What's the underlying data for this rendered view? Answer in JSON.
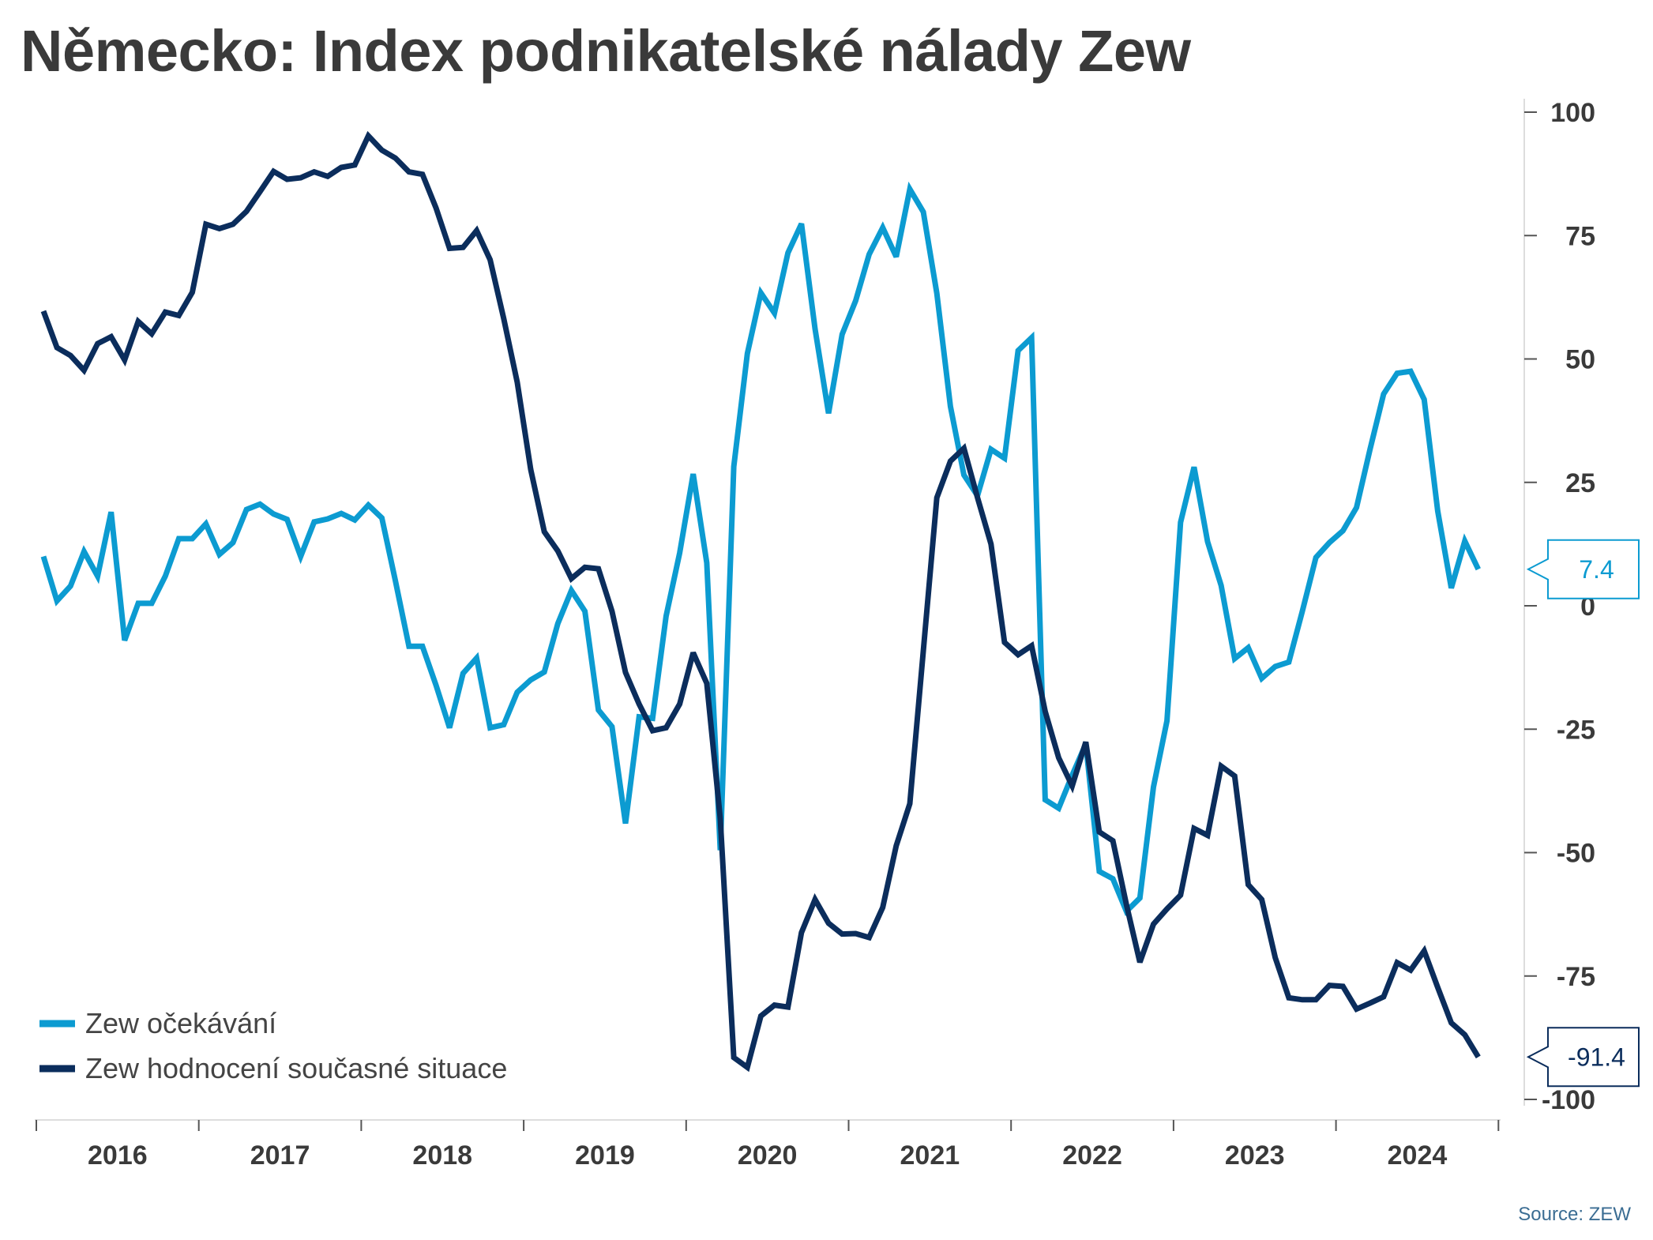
{
  "title": "Německo: Index podnikatelské nálady Zew",
  "source": "Source: ZEW",
  "colors": {
    "expectations": "#0c9bd1",
    "current": "#0b2d5c",
    "axis": "#555555"
  },
  "chart_data": {
    "type": "line",
    "title": "Německo: Index podnikatelské nálady Zew",
    "x_start": "2016-01",
    "x_end": "2024-12",
    "x_ticks": [
      "2016",
      "2017",
      "2018",
      "2019",
      "2020",
      "2021",
      "2022",
      "2023",
      "2024"
    ],
    "y_ticks": [
      "100",
      "75",
      "50",
      "25",
      "0",
      "-25",
      "-50",
      "-75",
      "-100"
    ],
    "ylim": [
      -100,
      100
    ],
    "legend_position": "bottom-left",
    "series": [
      {
        "name": "Zew očekávání",
        "color": "#0c9bd1",
        "values": [
          10,
          1,
          4,
          11,
          6,
          19,
          -7,
          0.5,
          0.5,
          6,
          13.6,
          13.6,
          16.6,
          10.4,
          12.8,
          19.5,
          20.6,
          18.6,
          17.5,
          10,
          17,
          17.6,
          18.7,
          17.4,
          20.4,
          17.8,
          5.1,
          -8.2,
          -8.2,
          -16.1,
          -24.7,
          -13.7,
          -10.6,
          -24.7,
          -24.1,
          -17.5,
          -15,
          -13.4,
          -3.6,
          3.1,
          -1.1,
          -21.1,
          -24.5,
          -44.1,
          -22.5,
          -22.8,
          -2.1,
          10.7,
          26.7,
          8.7,
          -49.5,
          28.2,
          51.1,
          63.4,
          59.3,
          71.5,
          77.4,
          56.1,
          39,
          55,
          61.8,
          71.2,
          76.6,
          70.7,
          84.4,
          79.8,
          63.3,
          40.4,
          26.5,
          22.3,
          31.7,
          29.9,
          51.7,
          54.3,
          -39.3,
          -41,
          -34.3,
          -28,
          -53.8,
          -55.3,
          -61.9,
          -59.2,
          -36.7,
          -23.3,
          16.9,
          28.1,
          13,
          4.1,
          -10.7,
          -8.5,
          -14.7,
          -12.3,
          -11.4,
          -1.1,
          9.8,
          12.8,
          15.2,
          19.9,
          31.7,
          42.9,
          47.1,
          47.5,
          41.8,
          19.2,
          3.6,
          13.1,
          7.4
        ],
        "last_label": "7.4"
      },
      {
        "name": "Zew hodnocení současné situace",
        "color": "#0b2d5c",
        "values": [
          59.7,
          52.3,
          50.7,
          47.7,
          53.1,
          54.5,
          49.8,
          57.6,
          55.1,
          59.5,
          58.8,
          63.5,
          77.3,
          76.4,
          77.3,
          79.9,
          83.9,
          88,
          86.4,
          86.7,
          87.9,
          87,
          88.8,
          89.3,
          95.2,
          92.3,
          90.7,
          87.9,
          87.4,
          80.6,
          72.4,
          72.6,
          76,
          70.1,
          58.2,
          45.3,
          27.6,
          15,
          11.1,
          5.5,
          7.8,
          7.5,
          -1.1,
          -13.5,
          -19.9,
          -25.3,
          -24.7,
          -19.9,
          -9.5,
          -15.7,
          -43.1,
          -91.5,
          -93.5,
          -83.1,
          -80.9,
          -81.3,
          -66.2,
          -59.5,
          -64.3,
          -66.5,
          -66.4,
          -67.2,
          -61.1,
          -48.6,
          -40.1,
          -9.1,
          21.9,
          29.3,
          31.9,
          21.9,
          12.5,
          -7.4,
          -9.9,
          -8.1,
          -21.4,
          -30.8,
          -36.5,
          -27.6,
          -45.8,
          -47.6,
          -60.5,
          -72.2,
          -64.5,
          -61.4,
          -58.6,
          -45.1,
          -46.5,
          -32.5,
          -34.5,
          -56.5,
          -59.5,
          -71.3,
          -79.4,
          -79.8,
          -79.8,
          -76.9,
          -77.1,
          -81.7,
          -80.5,
          -79.2,
          -72.3,
          -73.8,
          -69.9,
          -77.3,
          -84.5,
          -86.9,
          -91.4
        ],
        "last_label": "-91.4"
      }
    ]
  }
}
